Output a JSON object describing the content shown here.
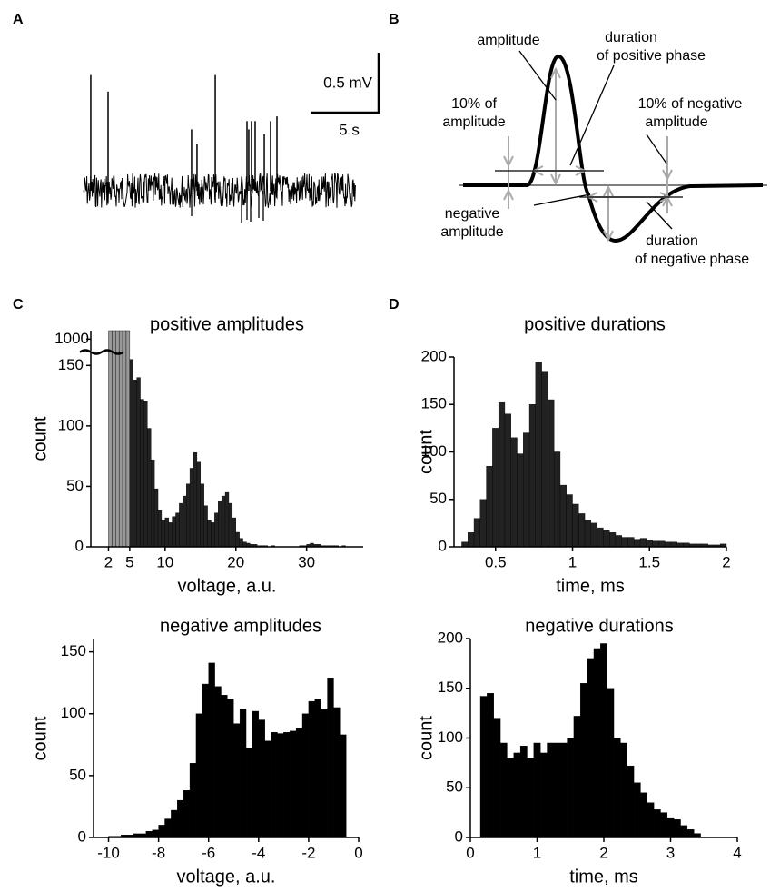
{
  "panel_labels": [
    "A",
    "B",
    "C",
    "D"
  ],
  "diagram": {
    "annotations": [
      [
        "amplitude"
      ],
      [
        "duration",
        "of positive phase"
      ],
      [
        "10% of",
        "amplitude"
      ],
      [
        "10% of negative",
        "amplitude"
      ],
      [
        "negative",
        "amplitude"
      ],
      [
        "duration",
        "of negative phase"
      ]
    ]
  },
  "chart_data": [
    {
      "type": "trace",
      "color": "#000000",
      "x": [
        0.53,
        1.8,
        7.93,
        8.33,
        9.67,
        12.0,
        12.13,
        12.33,
        12.6,
        13.27,
        13.73,
        14.2
      ],
      "values": [
        0.98,
        0.84,
        0.52,
        0.4,
        0.98,
        0.59,
        0.52,
        0.59,
        0.59,
        0.48,
        0.59,
        0.63
      ],
      "xlim": [
        0,
        20
      ],
      "ylim": [
        -0.3,
        1.0
      ],
      "scale_bars": [
        {
          "axis": "y",
          "value": 0.5,
          "label": "0.5 mV"
        },
        {
          "axis": "x",
          "value": 5,
          "label": "5 s"
        }
      ]
    },
    {
      "type": "histogram",
      "title": "positive amplitudes",
      "xlabel": "voltage, a.u.",
      "ylabel": "count",
      "xlim": [
        -0.5,
        38
      ],
      "xticks": [
        2,
        5,
        10,
        20,
        30
      ],
      "ylim": [
        0,
        160
      ],
      "yticks": [
        0,
        50,
        100,
        150
      ],
      "ylim_upper": [
        950,
        1040
      ],
      "break_ticks": [
        1000
      ],
      "series": [
        {
          "color": "#999999",
          "bins": [
            2,
            2.5,
            3,
            3.5,
            4,
            4.5,
            5
          ],
          "values": [
            1040,
            1040,
            1040,
            1040,
            1040,
            1040
          ]
        },
        {
          "color": "#222222",
          "bins": [
            5,
            5.5,
            6,
            6.5,
            7,
            7.5,
            8,
            8.5,
            9,
            9.5,
            10,
            10.5,
            11,
            11.5,
            12,
            12.5,
            13,
            13.5,
            14,
            14.5,
            15,
            15.5,
            16,
            16.5,
            17,
            17.5,
            18,
            18.5,
            19,
            19.5,
            20,
            20.5,
            21,
            21.5,
            22,
            22.5,
            23,
            23.5,
            24,
            24.5,
            25,
            25.5,
            26,
            26.5,
            27,
            27.5,
            28,
            28.5,
            29,
            29.5,
            30,
            30.5,
            31,
            31.5,
            32,
            32.5,
            33,
            33.5,
            34,
            34.5,
            35,
            35.5,
            36
          ],
          "values": [
            155,
            138,
            140,
            122,
            120,
            98,
            72,
            48,
            30,
            22,
            24,
            20,
            25,
            28,
            36,
            42,
            52,
            65,
            78,
            70,
            52,
            34,
            22,
            20,
            28,
            38,
            42,
            45,
            36,
            24,
            12,
            7,
            4,
            3,
            2,
            2,
            1,
            1,
            1,
            0,
            1,
            0,
            0,
            0,
            0,
            0,
            0,
            0,
            1,
            1,
            2,
            3,
            2,
            2,
            1,
            1,
            1,
            1,
            1,
            0,
            1,
            0
          ]
        }
      ]
    },
    {
      "type": "histogram",
      "title": "negative amplitudes",
      "xlabel": "voltage, a.u.",
      "ylabel": "count",
      "xlim": [
        -10.6,
        0
      ],
      "xticks": [
        -10,
        -8,
        -6,
        -4,
        -2,
        0
      ],
      "ylim": [
        0,
        160
      ],
      "yticks": [
        0,
        50,
        100,
        150
      ],
      "series": [
        {
          "color": "#000000",
          "bins": [
            -10,
            -9.75,
            -9.5,
            -9.25,
            -9,
            -8.75,
            -8.5,
            -8.25,
            -8,
            -7.75,
            -7.5,
            -7.25,
            -7,
            -6.75,
            -6.5,
            -6.25,
            -6,
            -5.75,
            -5.5,
            -5.25,
            -5,
            -4.75,
            -4.5,
            -4.25,
            -4,
            -3.75,
            -3.5,
            -3.25,
            -3,
            -2.75,
            -2.5,
            -2.25,
            -2,
            -1.75,
            -1.5,
            -1.25,
            -1,
            -0.75,
            -0.5
          ],
          "values": [
            1,
            1,
            2,
            2,
            3,
            3,
            5,
            6,
            10,
            15,
            22,
            30,
            38,
            60,
            100,
            124,
            141,
            122,
            115,
            112,
            92,
            104,
            72,
            102,
            95,
            78,
            85,
            84,
            85,
            86,
            88,
            100,
            110,
            112,
            104,
            129,
            105,
            83
          ]
        }
      ]
    },
    {
      "type": "histogram",
      "title": "positive durations",
      "xlabel": "time, ms",
      "ylabel": "count",
      "xlim": [
        0.23,
        2
      ],
      "xticks": [
        0.5,
        1,
        1.5,
        2
      ],
      "ylim": [
        0,
        200
      ],
      "yticks": [
        0,
        50,
        100,
        150,
        200
      ],
      "series": [
        {
          "color": "#222222",
          "bins": [
            0.24,
            0.28,
            0.32,
            0.36,
            0.4,
            0.44,
            0.48,
            0.52,
            0.56,
            0.6,
            0.64,
            0.68,
            0.72,
            0.76,
            0.8,
            0.84,
            0.88,
            0.92,
            0.96,
            1.0,
            1.04,
            1.08,
            1.12,
            1.16,
            1.2,
            1.24,
            1.28,
            1.32,
            1.36,
            1.4,
            1.44,
            1.48,
            1.52,
            1.56,
            1.6,
            1.64,
            1.68,
            1.72,
            1.76,
            1.8,
            1.84,
            1.88,
            1.92,
            1.96,
            2.0
          ],
          "values": [
            0,
            5,
            15,
            30,
            50,
            85,
            125,
            152,
            140,
            115,
            98,
            120,
            150,
            195,
            185,
            155,
            100,
            65,
            55,
            45,
            35,
            28,
            25,
            20,
            18,
            15,
            12,
            10,
            10,
            8,
            9,
            7,
            6,
            6,
            5,
            5,
            4,
            4,
            3,
            3,
            3,
            2,
            2,
            3
          ]
        }
      ]
    },
    {
      "type": "histogram",
      "title": "negative durations",
      "xlabel": "time, ms",
      "ylabel": "count",
      "xlim": [
        0,
        4
      ],
      "xticks": [
        0,
        1,
        2,
        3,
        4
      ],
      "ylim": [
        0,
        200
      ],
      "yticks": [
        0,
        50,
        100,
        150,
        200
      ],
      "series": [
        {
          "color": "#000000",
          "bins": [
            0.15,
            0.25,
            0.35,
            0.45,
            0.55,
            0.65,
            0.75,
            0.85,
            0.95,
            1.05,
            1.15,
            1.25,
            1.35,
            1.45,
            1.55,
            1.65,
            1.75,
            1.85,
            1.95,
            2.05,
            2.15,
            2.25,
            2.35,
            2.45,
            2.55,
            2.65,
            2.75,
            2.85,
            2.95,
            3.05,
            3.15,
            3.25,
            3.35,
            3.45
          ],
          "values": [
            142,
            145,
            120,
            95,
            80,
            85,
            92,
            80,
            95,
            85,
            95,
            95,
            95,
            100,
            122,
            155,
            180,
            190,
            195,
            150,
            100,
            95,
            72,
            55,
            45,
            35,
            28,
            25,
            20,
            18,
            12,
            8,
            4
          ]
        }
      ]
    }
  ]
}
